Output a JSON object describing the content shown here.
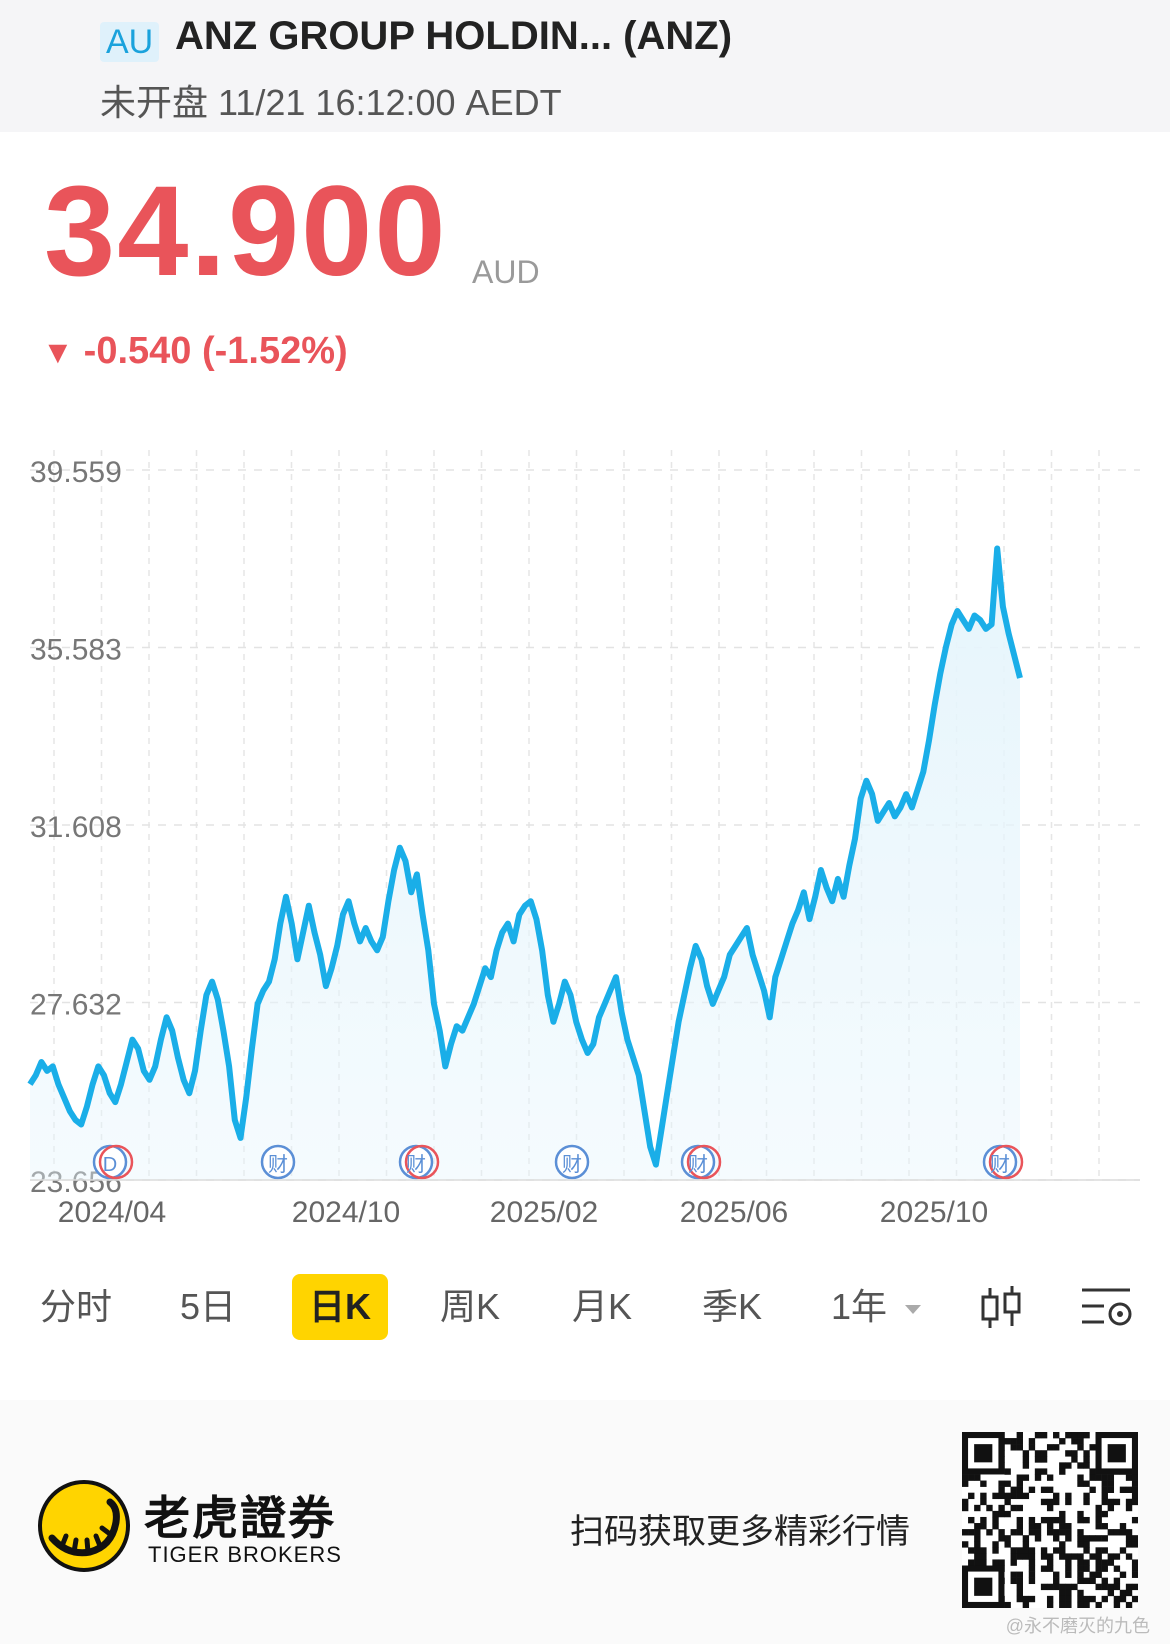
{
  "header": {
    "market_badge": "AU",
    "title": "ANZ GROUP HOLDIN... (ANZ)",
    "status": "未开盘 11/21 16:12:00 AEDT"
  },
  "quote": {
    "price": "34.900",
    "currency": "AUD",
    "change_arrow": "▼",
    "change": "-0.540 (-1.52%)",
    "color": "#e9545a"
  },
  "chart_data": {
    "type": "area",
    "line_color": "#1aaee8",
    "fill_color": "#e6f5fc",
    "y_ticks": [
      "39.559",
      "35.583",
      "31.608",
      "27.632",
      "23.656"
    ],
    "ylim": [
      23.656,
      39.559
    ],
    "x_ticks": [
      "2024/04",
      "2024/10",
      "2025/02",
      "2025/06",
      "2025/10"
    ],
    "grid": true,
    "series": [
      {
        "values": [
          25.8,
          26.0,
          26.3,
          26.1,
          26.2,
          25.8,
          25.5,
          25.2,
          25.0,
          24.9,
          25.3,
          25.8,
          26.2,
          26.0,
          25.6,
          25.4,
          25.8,
          26.3,
          26.8,
          26.6,
          26.1,
          25.9,
          26.2,
          26.8,
          27.3,
          27.0,
          26.4,
          25.9,
          25.6,
          26.1,
          27.0,
          27.8,
          28.1,
          27.7,
          27.0,
          26.2,
          25.0,
          24.6,
          25.5,
          26.6,
          27.6,
          27.9,
          28.1,
          28.6,
          29.4,
          30.0,
          29.4,
          28.6,
          29.2,
          29.8,
          29.2,
          28.7,
          28.0,
          28.4,
          28.9,
          29.6,
          29.9,
          29.4,
          29.0,
          29.3,
          29.0,
          28.8,
          29.1,
          29.9,
          30.6,
          31.1,
          30.8,
          30.1,
          30.5,
          29.6,
          28.8,
          27.6,
          27.0,
          26.2,
          26.7,
          27.1,
          27.0,
          27.3,
          27.6,
          28.0,
          28.4,
          28.2,
          28.8,
          29.2,
          29.4,
          29.0,
          29.6,
          29.8,
          29.9,
          29.5,
          28.8,
          27.8,
          27.2,
          27.6,
          28.1,
          27.8,
          27.2,
          26.8,
          26.5,
          26.7,
          27.3,
          27.6,
          27.9,
          28.2,
          27.4,
          26.8,
          26.4,
          26.0,
          25.2,
          24.4,
          24.0,
          24.8,
          25.6,
          26.4,
          27.2,
          27.8,
          28.4,
          28.9,
          28.6,
          28.0,
          27.6,
          27.9,
          28.2,
          28.7,
          28.9,
          29.1,
          29.3,
          28.7,
          28.3,
          27.9,
          27.3,
          28.2,
          28.6,
          29.0,
          29.4,
          29.7,
          30.1,
          29.5,
          30.0,
          30.6,
          30.2,
          29.9,
          30.4,
          30.0,
          30.7,
          31.3,
          32.2,
          32.6,
          32.3,
          31.7,
          31.9,
          32.1,
          31.8,
          32.0,
          32.3,
          32.0,
          32.4,
          32.8,
          33.5,
          34.3,
          35.0,
          35.6,
          36.1,
          36.4,
          36.2,
          36.0,
          36.3,
          36.2,
          36.0,
          36.1,
          37.8,
          36.5,
          35.9,
          35.4,
          34.9
        ]
      }
    ],
    "event_markers": [
      "D",
      "财",
      "财",
      "财",
      "财",
      "财"
    ]
  },
  "toolbar": {
    "items": [
      "分时",
      "5日",
      "日K",
      "周K",
      "月K",
      "季K",
      "1年"
    ],
    "active": "日K",
    "range_dropdown_icon": "triangle-down-icon",
    "chart_style_icon": "candlestick-icon",
    "settings_icon": "indicator-settings-icon"
  },
  "footer": {
    "brand_cn": "老虎證券",
    "brand_en": "TIGER BROKERS",
    "slogan": "扫码获取更多精彩行情",
    "watermark": "@永不磨灭的九色",
    "logo_icon": "tiger-logo-icon",
    "qr_icon": "qr-code-icon",
    "brand_color": "#ffd400"
  }
}
